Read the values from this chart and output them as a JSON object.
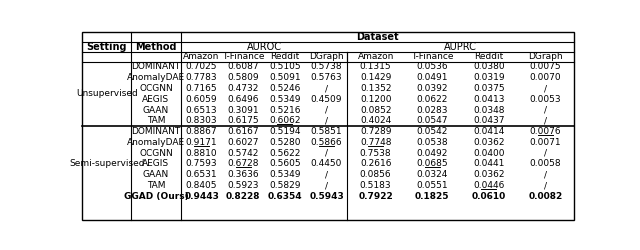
{
  "unsupervised_methods": [
    "DOMINANT",
    "AnomalyDAE",
    "OCGNN",
    "AEGIS",
    "GAAN",
    "TAM"
  ],
  "semisupervised_methods": [
    "DOMINANT",
    "AnomalyDAE",
    "OCGNN",
    "AEGIS",
    "GAAN",
    "TAM",
    "GGAD (Ours)"
  ],
  "unsupervised_data": [
    [
      "0.7025",
      "0.6087",
      "0.5105",
      "0.5738",
      "0.1315",
      "0.0536",
      "0.0380",
      "0.0075"
    ],
    [
      "0.7783",
      "0.5809",
      "0.5091",
      "0.5763",
      "0.1429",
      "0.0491",
      "0.0319",
      "0.0070"
    ],
    [
      "0.7165",
      "0.4732",
      "0.5246",
      "/",
      "0.1352",
      "0.0392",
      "0.0375",
      "/"
    ],
    [
      "0.6059",
      "0.6496",
      "0.5349",
      "0.4509",
      "0.1200",
      "0.0622",
      "0.0413",
      "0.0053"
    ],
    [
      "0.6513",
      "0.3091",
      "0.5216",
      "/",
      "0.0852",
      "0.0283",
      "0.0348",
      "/"
    ],
    [
      "0.8303",
      "0.6175",
      "0.6062",
      "/",
      "0.4024",
      "0.0547",
      "0.0437",
      "/"
    ]
  ],
  "semisupervised_data": [
    [
      "0.8867",
      "0.6167",
      "0.5194",
      "0.5851",
      "0.7289",
      "0.0542",
      "0.0414",
      "0.0076"
    ],
    [
      "0.9171",
      "0.6027",
      "0.5280",
      "0.5866",
      "0.7748",
      "0.0538",
      "0.0362",
      "0.0071"
    ],
    [
      "0.8810",
      "0.5742",
      "0.5622",
      "/",
      "0.7538",
      "0.0492",
      "0.0400",
      "/"
    ],
    [
      "0.7593",
      "0.6728",
      "0.5605",
      "0.4450",
      "0.2616",
      "0.0685",
      "0.0441",
      "0.0058"
    ],
    [
      "0.6531",
      "0.3636",
      "0.5349",
      "/",
      "0.0856",
      "0.0324",
      "0.0362",
      "/"
    ],
    [
      "0.8405",
      "0.5923",
      "0.5829",
      "/",
      "0.5183",
      "0.0551",
      "0.0446",
      "/"
    ],
    [
      "0.9443",
      "0.8228",
      "0.6354",
      "0.5943",
      "0.7922",
      "0.1825",
      "0.0610",
      "0.0082"
    ]
  ],
  "underlined_unsupervised": [
    [
      false,
      false,
      false,
      false,
      false,
      false,
      false,
      false
    ],
    [
      false,
      false,
      false,
      false,
      false,
      false,
      false,
      false
    ],
    [
      false,
      false,
      false,
      false,
      false,
      false,
      false,
      false
    ],
    [
      false,
      false,
      false,
      false,
      false,
      false,
      false,
      false
    ],
    [
      false,
      false,
      false,
      false,
      false,
      false,
      false,
      false
    ],
    [
      false,
      false,
      true,
      false,
      false,
      false,
      false,
      false
    ]
  ],
  "underlined_semisupervised": [
    [
      false,
      false,
      false,
      false,
      false,
      false,
      false,
      true
    ],
    [
      true,
      false,
      false,
      true,
      true,
      false,
      false,
      false
    ],
    [
      false,
      false,
      false,
      false,
      false,
      false,
      false,
      false
    ],
    [
      false,
      true,
      false,
      false,
      false,
      true,
      false,
      false
    ],
    [
      false,
      false,
      false,
      false,
      false,
      false,
      false,
      false
    ],
    [
      false,
      false,
      false,
      false,
      false,
      false,
      true,
      false
    ],
    [
      false,
      false,
      false,
      false,
      false,
      false,
      false,
      false
    ]
  ],
  "col_labels": [
    "Amazon",
    "T-Finance",
    "Reddit",
    "DGraph",
    "Amazon",
    "T-Finance",
    "Reddit",
    "DGraph"
  ],
  "font_size": 6.5
}
